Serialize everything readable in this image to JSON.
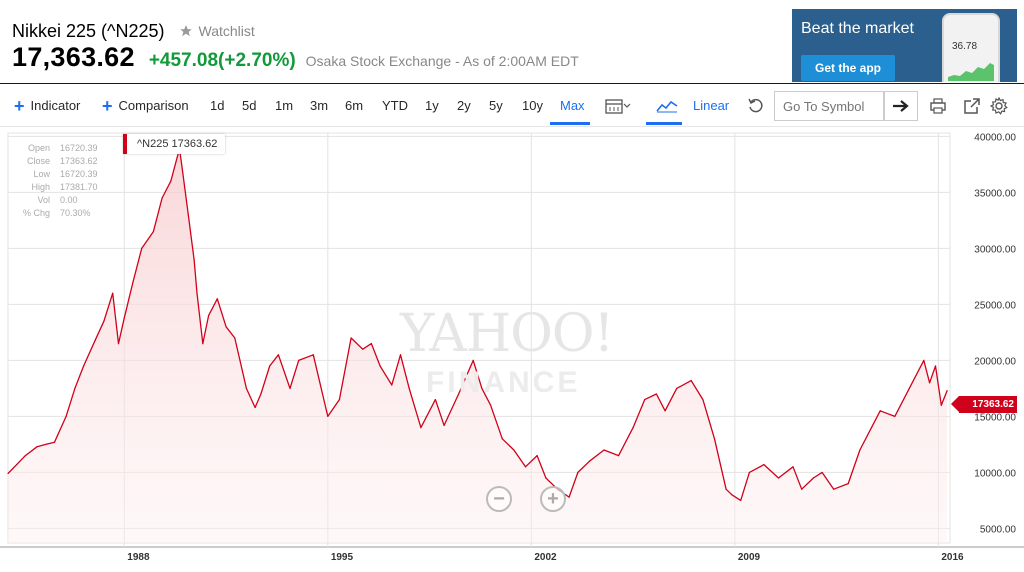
{
  "header": {
    "title": "Nikkei 225 (^N225)",
    "watchlist_label": "Watchlist",
    "price": "17,363.62",
    "change": "+457.08",
    "change_pct": "(+2.70%)",
    "exchange_note": "Osaka Stock Exchange - As of 2:00AM EDT",
    "change_color": "#109a3a"
  },
  "ad": {
    "title": "Beat the market",
    "button_label": "Get the app",
    "phone_value": "36.78"
  },
  "toolbar": {
    "indicator_label": "Indicator",
    "comparison_label": "Comparison",
    "ranges": [
      "1d",
      "5d",
      "1m",
      "3m",
      "6m",
      "YTD",
      "1y",
      "2y",
      "5y",
      "10y",
      "Max"
    ],
    "active_range": "Max",
    "scale_label": "Linear",
    "symbol_placeholder": "Go To Symbol",
    "accent_color": "#1d6ff0",
    "icons": [
      "calendar-icon",
      "chevron-down-icon",
      "chart-type-icon",
      "reset-icon",
      "arrow-right-icon",
      "print-icon",
      "popout-icon",
      "gear-icon"
    ]
  },
  "ohlc": {
    "open_label": "Open",
    "open": "16720.39",
    "close_label": "Close",
    "close": "17363.62",
    "low_label": "Low",
    "low": "16720.39",
    "high_label": "High",
    "high": "17381.70",
    "vol_label": "Vol",
    "vol": "0.00",
    "chg_label": "% Chg",
    "chg": "70.30%"
  },
  "chart": {
    "symbol_tag": "^N225 17363.62",
    "last_price": "17363.62",
    "watermark_top": "YAHOO!",
    "watermark_bottom": "FINANCE",
    "line_color": "#d0021b"
  },
  "chart_data": {
    "type": "area",
    "series": [
      {
        "name": "^N225",
        "x": [
          1984.0,
          1984.3,
          1984.6,
          1985.0,
          1985.3,
          1985.6,
          1986.0,
          1986.3,
          1986.6,
          1987.0,
          1987.3,
          1987.6,
          1987.8,
          1988.0,
          1988.3,
          1988.6,
          1989.0,
          1989.3,
          1989.6,
          1989.9,
          1990.0,
          1990.2,
          1990.4,
          1990.5,
          1990.7,
          1990.9,
          1991.2,
          1991.5,
          1991.8,
          1992.2,
          1992.5,
          1992.7,
          1993.0,
          1993.3,
          1993.7,
          1994.0,
          1994.5,
          1995.0,
          1995.4,
          1995.8,
          1996.2,
          1996.5,
          1996.8,
          1997.2,
          1997.5,
          1997.8,
          1998.2,
          1998.7,
          1999.0,
          1999.5,
          2000.0,
          2000.3,
          2000.6,
          2001.0,
          2001.4,
          2001.8,
          2002.2,
          2002.5,
          2002.9,
          2003.3,
          2003.6,
          2004.0,
          2004.5,
          2005.0,
          2005.5,
          2005.9,
          2006.3,
          2006.6,
          2007.0,
          2007.5,
          2007.9,
          2008.3,
          2008.7,
          2008.9,
          2009.2,
          2009.5,
          2010.0,
          2010.5,
          2011.0,
          2011.3,
          2011.7,
          2012.0,
          2012.4,
          2012.9,
          2013.3,
          2013.7,
          2014.0,
          2014.5,
          2015.0,
          2015.5,
          2015.7,
          2015.9,
          2016.1,
          2016.3
        ],
        "values": [
          9900,
          10700,
          11500,
          12300,
          12500,
          12700,
          15000,
          17500,
          19500,
          21800,
          23500,
          26000,
          21500,
          23800,
          27000,
          30000,
          31500,
          34500,
          36000,
          38900,
          37000,
          33000,
          29000,
          26000,
          21500,
          24000,
          25500,
          23000,
          22000,
          17500,
          15800,
          17000,
          19500,
          20500,
          17500,
          20000,
          20500,
          15000,
          16500,
          22000,
          21000,
          21500,
          19500,
          17800,
          20500,
          17500,
          14000,
          16500,
          14200,
          17000,
          20000,
          17500,
          16000,
          13000,
          12000,
          10500,
          11500,
          9500,
          8500,
          7800,
          10000,
          11000,
          12000,
          11500,
          14000,
          16500,
          17000,
          15500,
          17500,
          18200,
          16500,
          13000,
          8500,
          8000,
          7500,
          10000,
          10700,
          9500,
          10500,
          8500,
          9500,
          10000,
          8500,
          9000,
          12000,
          14000,
          15500,
          15000,
          17500,
          20000,
          18000,
          19500,
          16000,
          17300
        ],
        "color": "#d0021b"
      }
    ],
    "x_ticks": [
      "1988",
      "1995",
      "2002",
      "2009",
      "2016"
    ],
    "x_tick_values": [
      1988,
      1995,
      2002,
      2009,
      2016
    ],
    "y_ticks": [
      "5000.00",
      "10000.00",
      "15000.00",
      "20000.00",
      "25000.00",
      "30000.00",
      "35000.00",
      "40000.00"
    ],
    "y_tick_values": [
      5000,
      10000,
      15000,
      20000,
      25000,
      30000,
      35000,
      40000
    ],
    "xlim": [
      1984.0,
      2016.4
    ],
    "ylim": [
      3700,
      40300
    ],
    "grid": true,
    "title": "",
    "xlabel": "",
    "ylabel": ""
  }
}
